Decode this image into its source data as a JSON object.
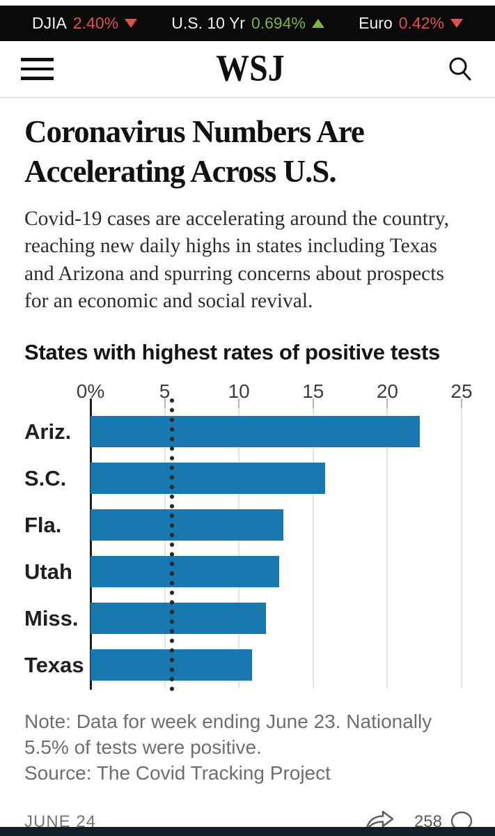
{
  "ticker": {
    "items": [
      {
        "label": "DJIA",
        "value": "2.40%",
        "direction": "down",
        "color": "#e0514a"
      },
      {
        "label": "U.S. 10 Yr",
        "value": "0.694%",
        "direction": "up",
        "color": "#7cb342"
      },
      {
        "label": "Euro",
        "value": "0.42%",
        "direction": "down",
        "color": "#e0514a"
      }
    ]
  },
  "header": {
    "logo": "WSJ"
  },
  "article": {
    "headline": "Coronavirus Numbers Are Accelerating Across U.S.",
    "body": "Covid-19 cases are accelerating around the country, reaching new daily highs in states including Texas and Arizona and spurring concerns about prospects for an economic and social revival."
  },
  "chart_data": {
    "type": "bar",
    "orientation": "horizontal",
    "title": "States with highest rates of positive tests",
    "categories": [
      "Ariz.",
      "S.C.",
      "Fla.",
      "Utah",
      "Miss.",
      "Texas"
    ],
    "values": [
      22.2,
      15.8,
      13.0,
      12.7,
      11.8,
      10.9
    ],
    "xlim": [
      0,
      25
    ],
    "x_ticks": [
      {
        "value": 0,
        "label": "0%"
      },
      {
        "value": 5,
        "label": "5"
      },
      {
        "value": 10,
        "label": "10"
      },
      {
        "value": 15,
        "label": "15"
      },
      {
        "value": 20,
        "label": "20"
      },
      {
        "value": 25,
        "label": "25"
      }
    ],
    "reference_line_value": 5.5,
    "bar_color": "#1878b0",
    "grid": true,
    "note": "Note: Data for week ending June 23. Nationally 5.5% of tests were positive.",
    "source": "Source: The Covid Tracking Project"
  },
  "footer": {
    "date": "JUNE 24",
    "comment_count": "258"
  }
}
